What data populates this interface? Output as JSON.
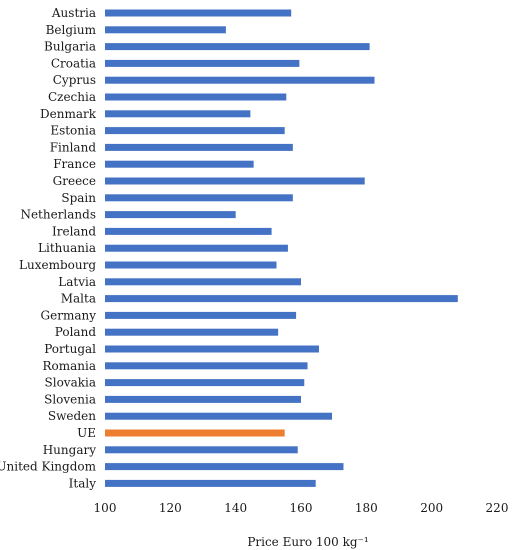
{
  "chart_data": {
    "type": "bar",
    "orientation": "horizontal",
    "categories": [
      "Austria",
      "Belgium",
      "Bulgaria",
      "Croatia",
      "Cyprus",
      "Czechia",
      "Denmark",
      "Estonia",
      "Finland",
      "France",
      "Greece",
      "Spain",
      "Netherlands",
      "Ireland",
      "Lithuania",
      "Luxembourg",
      "Latvia",
      "Malta",
      "Germany",
      "Poland",
      "Portugal",
      "Romania",
      "Slovakia",
      "Slovenia",
      "Sweden",
      "UE",
      "Hungary",
      "United Kingdom",
      "Italy"
    ],
    "values": [
      157,
      137,
      181,
      159.5,
      182.5,
      155.5,
      144.5,
      155,
      157.5,
      145.5,
      179.5,
      157.5,
      140,
      151,
      156,
      152.5,
      160,
      208,
      158.5,
      153,
      165.5,
      162,
      161,
      160,
      169.5,
      155,
      159,
      173,
      164.5
    ],
    "highlight_category": "UE",
    "colors": {
      "bar": "#4472C4",
      "highlight": "#ED7D31"
    },
    "title": "",
    "xlabel": "Price Euro 100 kg⁻¹",
    "ylabel": "",
    "xlim": [
      100,
      220
    ],
    "xticks": [
      100,
      120,
      140,
      160,
      180,
      200,
      220
    ],
    "grid": false,
    "legend": "none"
  }
}
